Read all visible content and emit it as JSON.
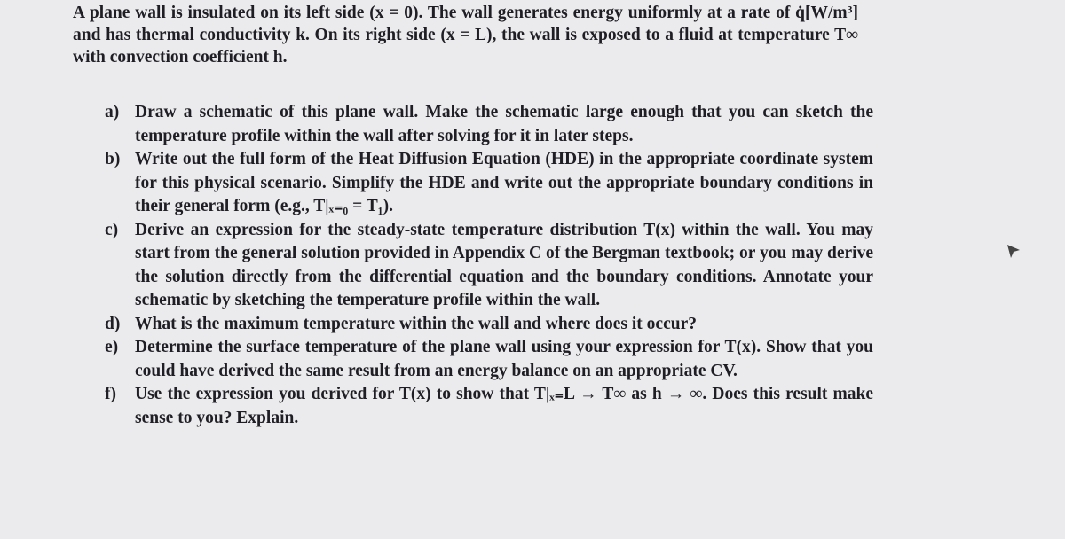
{
  "intro": "A plane wall is insulated on its left side (x = 0). The wall generates energy uniformly at a rate of q̇[W/m³] and has thermal conductivity k. On its right side (x = L), the wall is exposed to a fluid at temperature T∞ with convection coefficient h.",
  "items": [
    {
      "label": "a)",
      "text": "Draw a schematic of this plane wall. Make the schematic large enough that you can sketch the temperature profile within the wall after solving for it in later steps."
    },
    {
      "label": "b)",
      "text": "Write out the full form of the Heat Diffusion Equation (HDE) in the appropriate coordinate system for this physical scenario. Simplify the HDE and write out the appropriate boundary conditions in their general form (e.g., T|ₓ₌₀ = T₁)."
    },
    {
      "label": "c)",
      "text": "Derive an expression for the steady-state temperature distribution T(x) within the wall. You may start from the general solution provided in Appendix C of the Bergman textbook; or you may derive the solution directly from the differential equation and the boundary conditions. Annotate your schematic by sketching the temperature profile within the wall."
    },
    {
      "label": "d)",
      "text": "What is the maximum temperature within the wall and where does it occur?"
    },
    {
      "label": "e)",
      "text": "Determine the surface temperature of the plane wall using your expression for T(x). Show that you could have derived the same result from an energy balance on an appropriate CV."
    },
    {
      "label": "f)",
      "text": "Use the expression you derived for T(x) to show that T|ₓ₌L → T∞ as h → ∞. Does this result make sense to you? Explain."
    }
  ]
}
